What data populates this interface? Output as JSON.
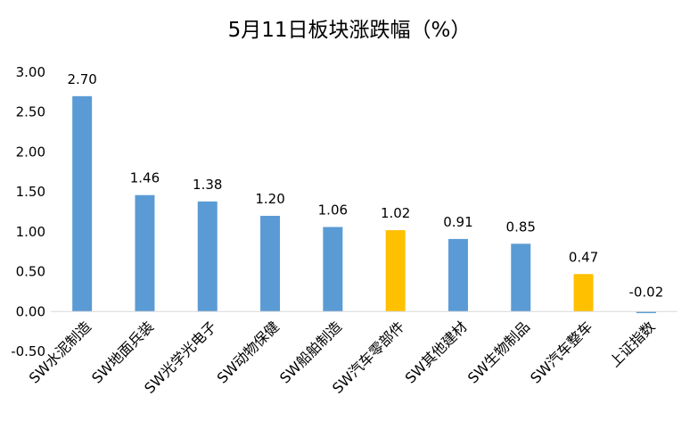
{
  "chart_data": {
    "type": "bar",
    "title": "5月11日板块涨跌幅（%）",
    "xlabel": "",
    "ylabel": "",
    "ylim": [
      -0.5,
      3.0
    ],
    "ytick_step": 0.5,
    "ytick_labels": [
      "-0.50",
      "0.00",
      "0.50",
      "1.00",
      "1.50",
      "2.00",
      "2.50",
      "3.00"
    ],
    "grid": false,
    "legend": "none",
    "categories": [
      "SW水泥制造",
      "SW地面兵装",
      "SW光学光电子",
      "SW动物保健",
      "SW船舶制造",
      "SW汽车零部件",
      "SW其他建材",
      "SW生物制品",
      "SW汽车整车",
      "上证指数"
    ],
    "values": [
      2.7,
      1.46,
      1.38,
      1.2,
      1.06,
      1.02,
      0.91,
      0.85,
      0.47,
      -0.02
    ],
    "value_labels": [
      "2.70",
      "1.46",
      "1.38",
      "1.20",
      "1.06",
      "1.02",
      "0.91",
      "0.85",
      "0.47",
      "-0.02"
    ],
    "bar_colors": [
      "#5b9bd5",
      "#5b9bd5",
      "#5b9bd5",
      "#5b9bd5",
      "#5b9bd5",
      "#ffc000",
      "#5b9bd5",
      "#5b9bd5",
      "#ffc000",
      "#5b9bd5"
    ],
    "axis_color": "#d9d9d9"
  }
}
